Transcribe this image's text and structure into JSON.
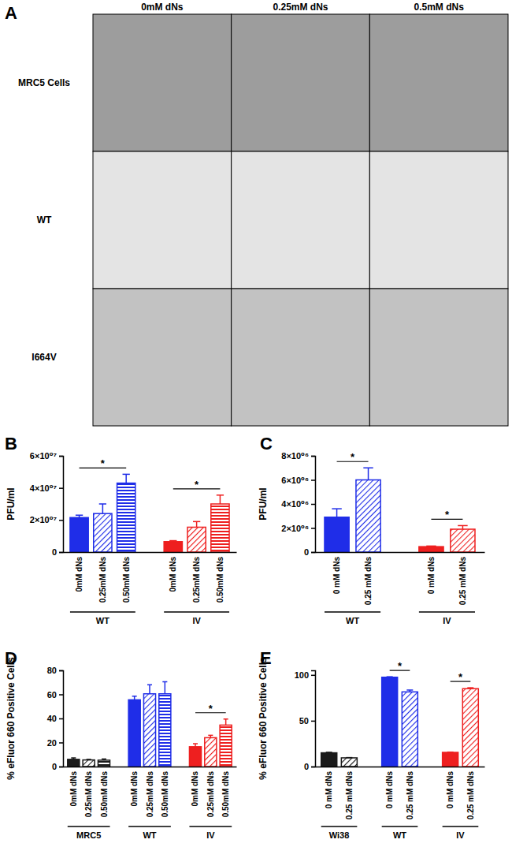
{
  "image_grid": {
    "title": "A",
    "columns": [
      "0mM dNs",
      "0.25mM dNs",
      "0.5mM dNs"
    ],
    "rows": [
      "MRC5 Cells",
      "WT",
      "I664V"
    ]
  },
  "chart_data": [
    {
      "type": "bar",
      "title": "B",
      "y_label": "PFU/ml",
      "ylim": [
        0,
        60000000
      ],
      "yticks": [
        0,
        {
          "value": 20000000,
          "label": "2×10⁰⁷"
        },
        {
          "value": 40000000,
          "label": "4×10⁰⁷"
        },
        {
          "value": 60000000,
          "label": "6×10⁰⁷"
        }
      ],
      "series": [
        {
          "name": "WT",
          "color": "#1f2de8",
          "categories": [
            "0mM dNs",
            "0.25mM dNs",
            "0.50mM dNs"
          ],
          "values": [
            21500000,
            24000000,
            43000000
          ],
          "errors": [
            1500000,
            6000000,
            5500000
          ]
        },
        {
          "name": "IV",
          "color": "#ee1f1f",
          "categories": [
            "0mM dNs",
            "0.25mM dNs",
            "0.50mM dNs"
          ],
          "values": [
            6500000,
            15500000,
            30000000
          ],
          "errors": [
            600000,
            3500000,
            5500000
          ]
        }
      ],
      "annotations": [
        {
          "text": "*",
          "series": "WT",
          "from": "0mM dNs",
          "to": "0.50mM dNs"
        },
        {
          "text": "*",
          "series": "IV",
          "from": "0mM dNs",
          "to": "0.50mM dNs"
        }
      ]
    },
    {
      "type": "bar",
      "title": "C",
      "y_label": "PFU/ml",
      "ylim": [
        0,
        8000000
      ],
      "yticks": [
        0,
        {
          "value": 2000000,
          "label": "2×10⁰⁶"
        },
        {
          "value": 4000000,
          "label": "4×10⁰⁶"
        },
        {
          "value": 6000000,
          "label": "6×10⁰⁶"
        },
        {
          "value": 8000000,
          "label": "8×10⁰⁶"
        }
      ],
      "series": [
        {
          "name": "WT",
          "color": "#1f2de8",
          "categories": [
            "0 mM dNs",
            "0.25 mM dNs"
          ],
          "values": [
            2900000,
            6000000
          ],
          "errors": [
            700000,
            1000000
          ]
        },
        {
          "name": "IV",
          "color": "#ee1f1f",
          "categories": [
            "0 mM dNs",
            "0.25 mM dNs"
          ],
          "values": [
            450000,
            1900000
          ],
          "errors": [
            50000,
            300000
          ]
        }
      ],
      "annotations": [
        {
          "text": "*",
          "series": "WT",
          "from": "0 mM dNs",
          "to": "0.25 mM dNs"
        },
        {
          "text": "*",
          "series": "IV",
          "from": "0 mM dNs",
          "to": "0.25 mM dNs"
        }
      ]
    },
    {
      "type": "bar",
      "title": "D",
      "y_label": "% eFluor 660 Positive Cells",
      "ylim": [
        0,
        80
      ],
      "yticks": [
        0,
        20,
        40,
        60,
        80
      ],
      "series": [
        {
          "name": "MRC5",
          "color": "#1a1a1a",
          "categories": [
            "0mM dNs",
            "0.25mM dNs",
            "0.50mM dNs"
          ],
          "values": [
            6,
            5.5,
            5.3
          ],
          "errors": [
            1.2,
            0.5,
            1
          ]
        },
        {
          "name": "WT",
          "color": "#1f2de8",
          "categories": [
            "0mM dNs",
            "0.25mM dNs",
            "0.50mM dNs"
          ],
          "values": [
            55.5,
            60.5,
            60.5
          ],
          "errors": [
            3,
            7.5,
            10
          ]
        },
        {
          "name": "IV",
          "color": "#ee1f1f",
          "categories": [
            "0mM dNs",
            "0.25mM dNs",
            "0.50mM dNs"
          ],
          "values": [
            16.5,
            24,
            34.5
          ],
          "errors": [
            2.5,
            2,
            5
          ]
        }
      ],
      "annotations": [
        {
          "text": "*",
          "series": "IV",
          "from": "0mM dNs",
          "to": "0.50mM dNs"
        }
      ]
    },
    {
      "type": "bar",
      "title": "E",
      "y_label": "% eFluor 660 Positive Cells",
      "ylim": [
        0,
        105
      ],
      "yticks": [
        0,
        50,
        100
      ],
      "series": [
        {
          "name": "Wi38",
          "color": "#1a1a1a",
          "categories": [
            "0 mM dNs",
            "0.25 mM dNs"
          ],
          "values": [
            15,
            9.5
          ],
          "errors": [
            0.6,
            0.3
          ]
        },
        {
          "name": "WT",
          "color": "#1f2de8",
          "categories": [
            "0 mM dNs",
            "0.25 mM dNs"
          ],
          "values": [
            97.5,
            81.5
          ],
          "errors": [
            0.5,
            2
          ]
        },
        {
          "name": "IV",
          "color": "#ee1f1f",
          "categories": [
            "0 mM dNs",
            "0.25 mM dNs"
          ],
          "values": [
            15.5,
            85
          ],
          "errors": [
            0.3,
            1
          ]
        }
      ],
      "annotations": [
        {
          "text": "*",
          "series": "WT",
          "from": "0 mM dNs",
          "to": "0.25 mM dNs"
        },
        {
          "text": "*",
          "series": "IV",
          "from": "0 mM dNs",
          "to": "0.25 mM dNs"
        }
      ]
    }
  ]
}
